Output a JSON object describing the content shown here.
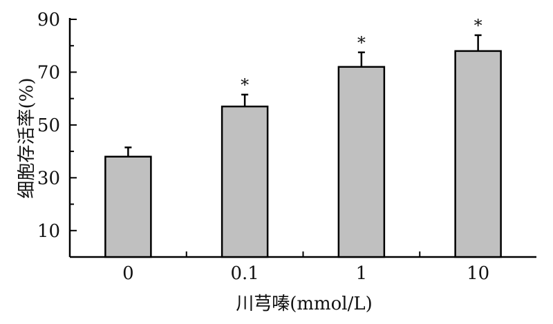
{
  "chart_data": {
    "type": "bar",
    "categories": [
      "0",
      "0.1",
      "1",
      "10"
    ],
    "values": [
      38,
      57,
      72,
      78
    ],
    "errors": [
      3.5,
      4.5,
      5.5,
      6
    ],
    "significance": [
      "",
      "*",
      "*",
      "*"
    ],
    "xlabel": "川芎嗪(mmol/L)",
    "ylabel": "细胞存活率(%)",
    "ylim": [
      0,
      90
    ],
    "yticks": [
      10,
      30,
      50,
      70,
      90
    ],
    "bar_color": "#c0c0c0",
    "edge_color": "#000000",
    "grid": false,
    "legend": "none"
  }
}
